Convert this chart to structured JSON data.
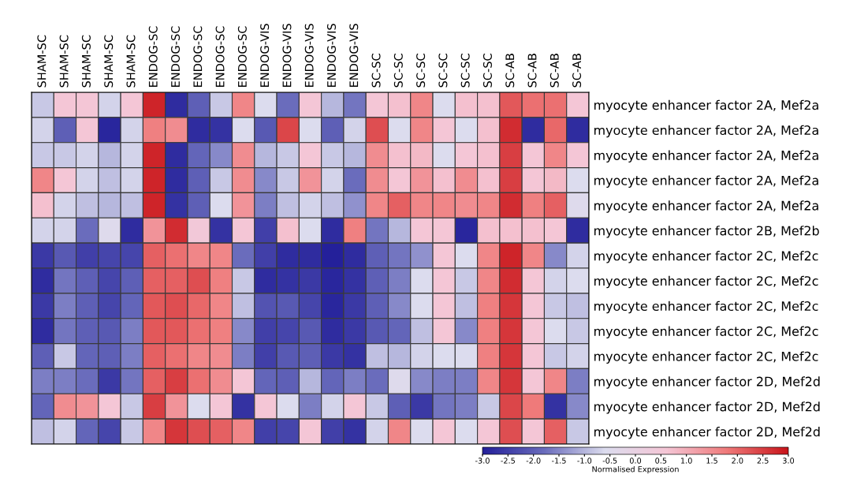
{
  "chart_data": {
    "type": "heatmap",
    "categories": [
      "SHAM-SC",
      "SHAM-SC",
      "SHAM-SC",
      "SHAM-SC",
      "SHAM-SC",
      "ENDOG-SC",
      "ENDOG-SC",
      "ENDOG-SC",
      "ENDOG-SC",
      "ENDOG-SC",
      "ENDOG-VIS",
      "ENDOG-VIS",
      "ENDOG-VIS",
      "ENDOG-VIS",
      "ENDOG-VIS",
      "SC-SC",
      "SC-SC",
      "SC-SC",
      "SC-SC",
      "SC-SC",
      "SC-SC",
      "SC-AB",
      "SC-AB",
      "SC-AB",
      "SC-AB"
    ],
    "y_categories": [
      "myocyte enhancer factor 2A, Mef2a",
      "myocyte enhancer factor 2A, Mef2a",
      "myocyte enhancer factor 2A, Mef2a",
      "myocyte enhancer factor 2A, Mef2a",
      "myocyte enhancer factor 2A, Mef2a",
      "myocyte enhancer factor 2B, Mef2b",
      "myocyte enhancer factor 2C, Mef2c",
      "myocyte enhancer factor 2C, Mef2c",
      "myocyte enhancer factor 2C, Mef2c",
      "myocyte enhancer factor 2C, Mef2c",
      "myocyte enhancer factor 2C, Mef2c",
      "myocyte enhancer factor 2D, Mef2d",
      "myocyte enhancer factor 2D, Mef2d",
      "myocyte enhancer factor 2D, Mef2d"
    ],
    "cells": [
      [
        -0.8,
        0.6,
        0.6,
        -0.7,
        0.6,
        2.8,
        -2.8,
        -2.0,
        -0.8,
        1.6,
        -0.6,
        -1.8,
        0.6,
        -1.0,
        -1.7,
        0.6,
        0.7,
        1.6,
        -0.6,
        0.7,
        0.7,
        2.2,
        1.9,
        1.9,
        0.6
      ],
      [
        -0.7,
        -2.0,
        0.6,
        -2.9,
        -0.7,
        1.7,
        1.5,
        -2.8,
        -2.7,
        -0.6,
        -2.1,
        2.4,
        -0.6,
        -2.0,
        -0.7,
        2.3,
        -0.6,
        1.6,
        0.6,
        -0.6,
        0.7,
        2.7,
        -2.8,
        2.0,
        -2.8
      ],
      [
        -0.8,
        -0.8,
        -0.7,
        -1.0,
        -0.7,
        2.8,
        -2.8,
        -1.9,
        -1.5,
        1.5,
        -1.0,
        -0.8,
        0.6,
        -0.8,
        -1.0,
        1.5,
        0.7,
        0.8,
        -0.6,
        0.6,
        0.7,
        2.5,
        0.6,
        1.6,
        0.6
      ],
      [
        1.6,
        0.6,
        -0.7,
        -0.9,
        -0.7,
        2.8,
        -2.8,
        -2.0,
        -0.8,
        1.5,
        -1.5,
        -0.8,
        1.4,
        -0.7,
        -1.8,
        1.5,
        0.6,
        1.4,
        0.7,
        1.5,
        0.7,
        2.5,
        0.6,
        0.8,
        -0.6
      ],
      [
        0.7,
        -0.7,
        -0.9,
        -1.0,
        -0.9,
        2.8,
        -2.7,
        -2.0,
        -0.6,
        1.4,
        -1.6,
        -0.9,
        -0.7,
        -0.9,
        -1.4,
        1.6,
        2.1,
        1.6,
        1.6,
        1.5,
        1.6,
        2.7,
        1.7,
        2.1,
        -0.5
      ],
      [
        -0.7,
        -0.7,
        -1.8,
        -0.5,
        -2.8,
        1.4,
        2.7,
        0.5,
        -2.7,
        0.6,
        -2.5,
        0.7,
        -0.6,
        -2.8,
        1.7,
        -1.7,
        -1.0,
        0.6,
        0.6,
        -2.9,
        0.7,
        0.7,
        0.7,
        0.6,
        -2.8
      ],
      [
        -2.6,
        -2.1,
        -2.5,
        -2.4,
        -2.4,
        2.1,
        1.9,
        1.6,
        1.6,
        -1.8,
        -2.5,
        -2.8,
        -2.8,
        -3.0,
        -2.8,
        -2.0,
        -1.7,
        -1.4,
        0.6,
        -0.6,
        1.6,
        2.8,
        1.6,
        -1.5,
        -0.7
      ],
      [
        -2.8,
        -1.7,
        -2.0,
        -2.4,
        -2.0,
        2.1,
        2.1,
        2.3,
        1.7,
        -0.8,
        -2.8,
        -2.7,
        -2.6,
        -2.9,
        -2.7,
        -2.0,
        -1.6,
        -0.6,
        0.6,
        -0.8,
        1.6,
        2.7,
        0.6,
        -0.7,
        -0.6
      ],
      [
        -2.6,
        -1.6,
        -2.0,
        -2.4,
        -1.9,
        2.2,
        2.3,
        2.0,
        1.6,
        -0.9,
        -2.2,
        -2.1,
        -2.4,
        -2.9,
        -2.6,
        -2.0,
        -1.5,
        -0.6,
        0.6,
        -0.9,
        1.7,
        2.6,
        0.6,
        -0.8,
        -0.9
      ],
      [
        -2.8,
        -1.7,
        -2.0,
        -2.1,
        -1.6,
        2.2,
        2.2,
        1.9,
        1.7,
        -1.5,
        -2.5,
        -2.4,
        -2.1,
        -2.8,
        -2.6,
        -2.1,
        -1.9,
        -0.9,
        0.6,
        -1.5,
        1.7,
        2.6,
        0.6,
        -0.6,
        -0.8
      ],
      [
        -2.0,
        -0.8,
        -1.9,
        -2.0,
        -1.6,
        2.1,
        1.9,
        1.6,
        1.5,
        -1.6,
        -2.5,
        -2.1,
        -2.0,
        -2.6,
        -2.7,
        -0.9,
        -1.0,
        -0.7,
        -0.6,
        -0.6,
        1.7,
        2.6,
        0.6,
        -0.8,
        -0.7
      ],
      [
        -1.6,
        -1.6,
        -1.8,
        -2.6,
        -1.7,
        2.1,
        2.5,
        1.9,
        1.5,
        0.6,
        -1.9,
        -2.0,
        -1.0,
        -1.9,
        -1.6,
        -1.8,
        -0.5,
        -1.5,
        -1.6,
        -1.6,
        1.6,
        2.6,
        0.6,
        1.6,
        -1.6
      ],
      [
        -1.9,
        1.5,
        1.4,
        0.6,
        -0.8,
        2.5,
        1.4,
        -0.6,
        0.6,
        -2.7,
        0.6,
        -0.6,
        -1.6,
        -0.7,
        0.6,
        -0.8,
        -2.0,
        -2.6,
        -1.7,
        -1.6,
        -0.8,
        2.4,
        1.8,
        -2.7,
        -1.5
      ],
      [
        -0.9,
        -0.7,
        -1.9,
        -2.4,
        -0.8,
        1.6,
        2.6,
        2.3,
        2.1,
        1.6,
        -2.5,
        -2.4,
        0.6,
        -2.5,
        -2.7,
        -0.7,
        1.6,
        -0.6,
        0.6,
        -0.6,
        0.6,
        2.3,
        0.6,
        2.1,
        -0.8
      ]
    ],
    "clim": [
      -3.0,
      3.0
    ],
    "cticks": [
      {
        "value": -3.0,
        "label": "-3.0"
      },
      {
        "value": -2.5,
        "label": "-2.5"
      },
      {
        "value": -2.0,
        "label": "-2.0"
      },
      {
        "value": -1.5,
        "label": "-1.5"
      },
      {
        "value": -1.0,
        "label": "-1.0"
      },
      {
        "value": -0.5,
        "label": "-0.5"
      },
      {
        "value": 0.0,
        "label": "0.0"
      },
      {
        "value": 0.5,
        "label": "0.5"
      },
      {
        "value": 1.0,
        "label": "1.0"
      },
      {
        "value": 1.5,
        "label": "1.5"
      },
      {
        "value": 2.0,
        "label": "2.0"
      },
      {
        "value": 2.5,
        "label": "2.5"
      },
      {
        "value": 3.0,
        "label": "3.0"
      }
    ],
    "clabel": "Normalised Expression"
  }
}
